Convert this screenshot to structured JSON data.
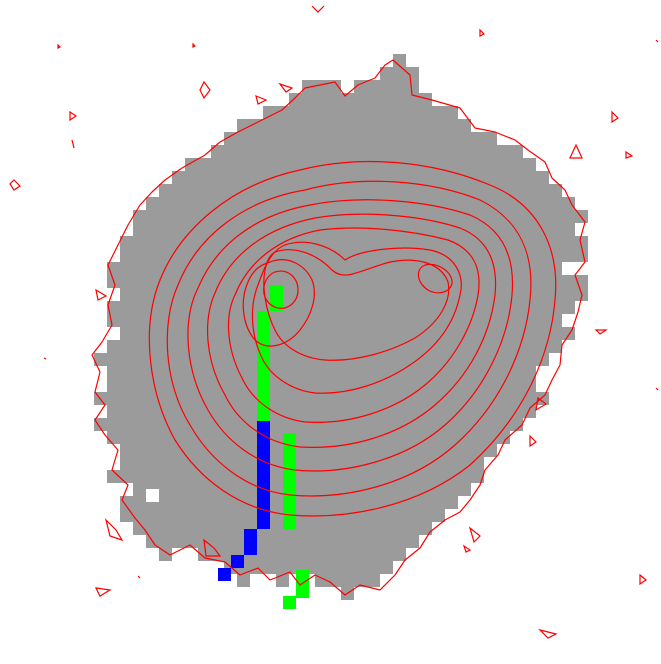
{
  "figure": {
    "description_free": true,
    "colors": {
      "background": "#ffffff",
      "mask": "#9b9b9b",
      "contour": "#ff0000",
      "track_green": "#00ff00",
      "track_blue": "#0000ff"
    },
    "layers": [
      "grey-mask",
      "contour-lines",
      "green-track",
      "blue-track",
      "noise-contours"
    ]
  }
}
